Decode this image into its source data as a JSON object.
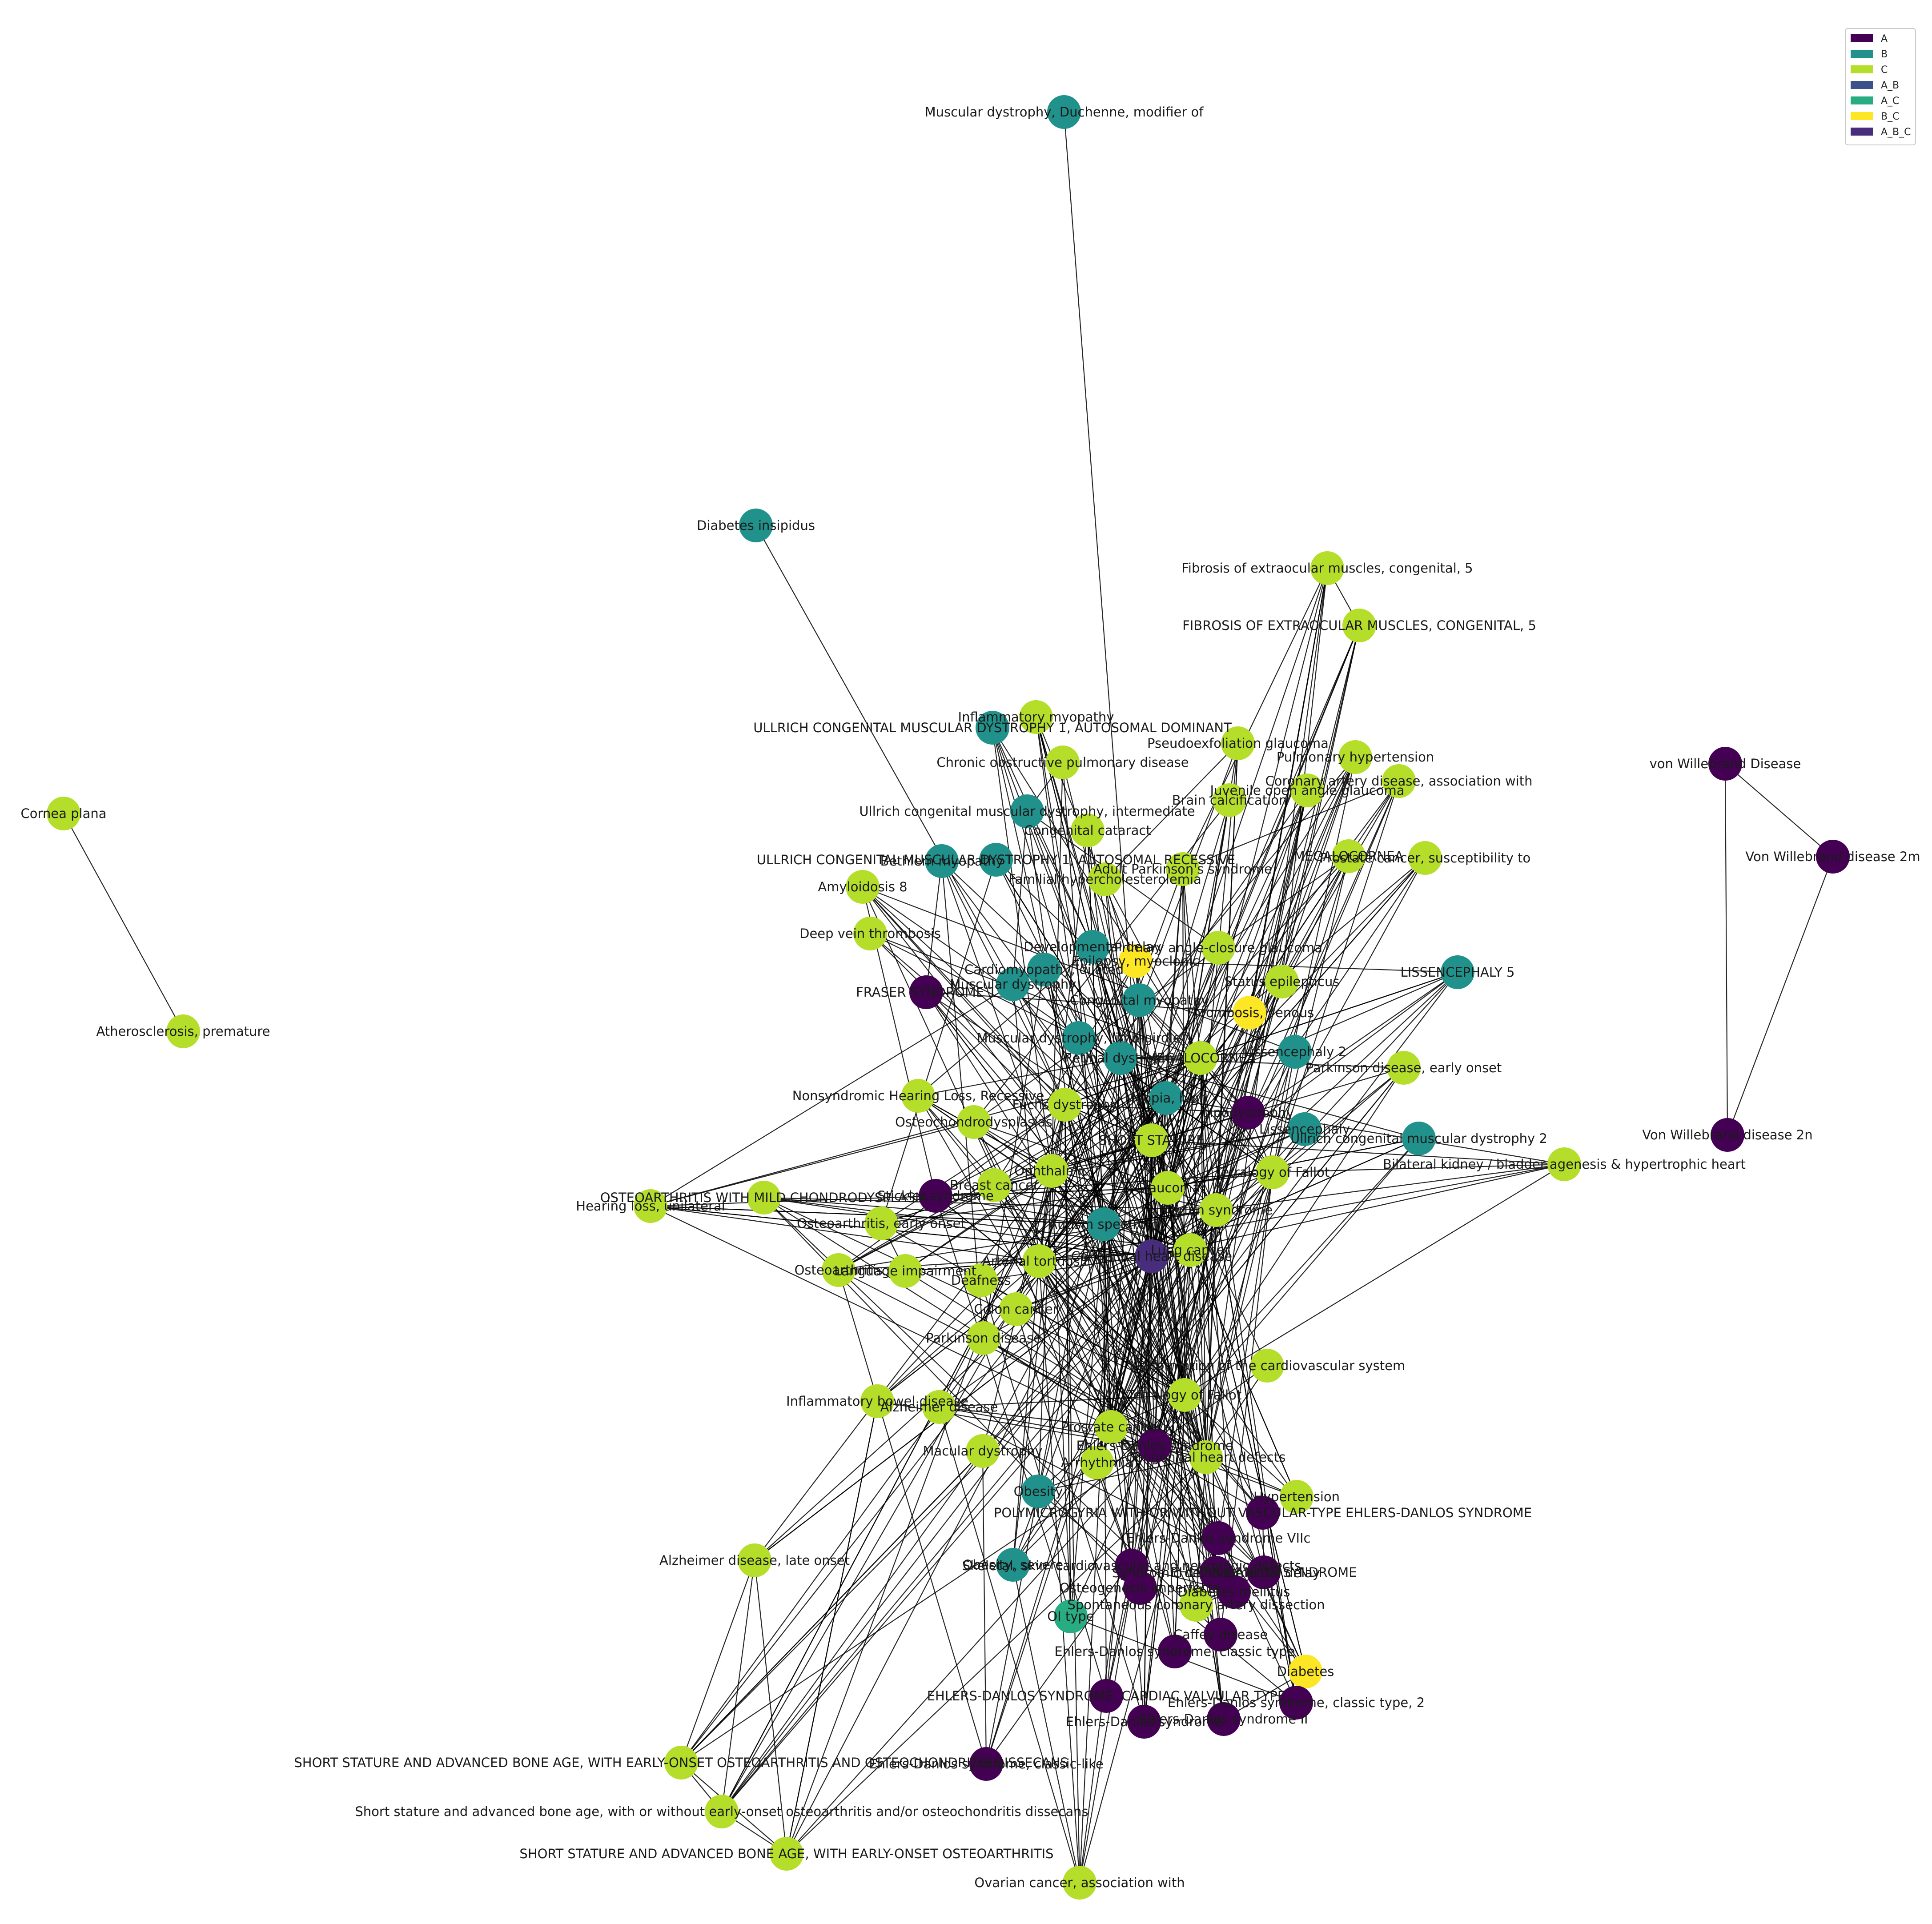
{
  "legend": {
    "items": [
      {
        "key": "A",
        "color": "#440154"
      },
      {
        "key": "B",
        "color": "#21918c"
      },
      {
        "key": "C",
        "color": "#b5de2b"
      },
      {
        "key": "A_B",
        "color": "#3b528b"
      },
      {
        "key": "A_C",
        "color": "#27ad81"
      },
      {
        "key": "B_C",
        "color": "#fde725"
      },
      {
        "key": "A_B_C",
        "color": "#472d7b"
      }
    ]
  },
  "nodes": [
    {
      "id": "n1",
      "label": "Muscular dystrophy, Duchenne, modifier of",
      "group": "B"
    },
    {
      "id": "n2",
      "label": "Diabetes insipidus",
      "group": "B"
    },
    {
      "id": "n3",
      "label": "Fibrosis of extraocular muscles, congenital, 5",
      "group": "C"
    },
    {
      "id": "n4",
      "label": "FIBROSIS OF EXTRAOCULAR MUSCLES, CONGENITAL, 5",
      "group": "C"
    },
    {
      "id": "n5",
      "label": "Inflammatory myopathy",
      "group": "C"
    },
    {
      "id": "n6",
      "label": "ULLRICH CONGENITAL MUSCULAR DYSTROPHY 1, AUTOSOMAL DOMINANT",
      "group": "B"
    },
    {
      "id": "n7",
      "label": "Chronic obstructive pulmonary disease",
      "group": "C"
    },
    {
      "id": "n8",
      "label": "Pseudoexfoliation glaucoma",
      "group": "C"
    },
    {
      "id": "n9",
      "label": "Pulmonary hypertension",
      "group": "C"
    },
    {
      "id": "n10",
      "label": "Coronary artery disease, association with",
      "group": "C"
    },
    {
      "id": "n11",
      "label": "Juvenile open angle glaucoma",
      "group": "C"
    },
    {
      "id": "n12",
      "label": "Brain calcification",
      "group": "C"
    },
    {
      "id": "n13",
      "label": "Ullrich congenital muscular dystrophy, intermediate",
      "group": "B"
    },
    {
      "id": "n14",
      "label": "Congenital cataract",
      "group": "C"
    },
    {
      "id": "n15",
      "label": "Cornea plana",
      "group": "C"
    },
    {
      "id": "n16",
      "label": "Atherosclerosis, premature",
      "group": "C"
    },
    {
      "id": "n17",
      "label": "von Willebrand Disease",
      "group": "A"
    },
    {
      "id": "n18",
      "label": "Von Willebrand disease 2m",
      "group": "A"
    },
    {
      "id": "n19",
      "label": "Von Willebrand disease 2n",
      "group": "A"
    },
    {
      "id": "n20",
      "label": "ULLRICH CONGENITAL MUSCULAR DYSTROPHY 1, AUTOSOMAL RECESSIVE",
      "group": "B"
    },
    {
      "id": "n21",
      "label": "Bethlem myopathy",
      "group": "B"
    },
    {
      "id": "n22",
      "label": "Adult Parkinson's syndrome",
      "group": "C"
    },
    {
      "id": "n23",
      "label": "Familial hypercholesterolemia",
      "group": "C"
    },
    {
      "id": "n24",
      "label": "MEGALOCORNEA",
      "group": "C"
    },
    {
      "id": "n25",
      "label": "Prostate cancer, susceptibility to",
      "group": "C"
    },
    {
      "id": "n26",
      "label": "Amyloidosis 8",
      "group": "C"
    },
    {
      "id": "n27",
      "label": "Deep vein thrombosis",
      "group": "C"
    },
    {
      "id": "n28",
      "label": "Developmental delay",
      "group": "B"
    },
    {
      "id": "n29",
      "label": "Epilepsy, myoclonic",
      "group": "B_C"
    },
    {
      "id": "n30",
      "label": "Cardiomyopathy, dilated",
      "group": "B"
    },
    {
      "id": "n31",
      "label": "Muscular dystrophy",
      "group": "B"
    },
    {
      "id": "n32",
      "label": "Primary angle-closure glaucoma",
      "group": "C"
    },
    {
      "id": "n33",
      "label": "Status epilepticus",
      "group": "C"
    },
    {
      "id": "n34",
      "label": "LISSENCEPHALY 5",
      "group": "B"
    },
    {
      "id": "n35",
      "label": "FRASER SYNDROME 1",
      "group": "A"
    },
    {
      "id": "n36",
      "label": "Thrombosis, venous",
      "group": "B_C"
    },
    {
      "id": "n37",
      "label": "Congenital myopathy",
      "group": "B"
    },
    {
      "id": "n38",
      "label": "Lissencephaly 2",
      "group": "B"
    },
    {
      "id": "n39",
      "label": "Parkinson disease, early onset",
      "group": "C"
    },
    {
      "id": "n40",
      "label": "Muscular dystrophy, limb-girdle",
      "group": "B"
    },
    {
      "id": "n41",
      "label": "Nonsyndromic Hearing Loss, Recessive",
      "group": "C"
    },
    {
      "id": "n42",
      "label": "Lipodystrophy",
      "group": "A"
    },
    {
      "id": "n43",
      "label": "Lissencephaly",
      "group": "B"
    },
    {
      "id": "n44",
      "label": "Osteochondrodysplasias",
      "group": "C"
    },
    {
      "id": "n45",
      "label": "Ullrich congenital muscular dystrophy 2",
      "group": "B"
    },
    {
      "id": "n46",
      "label": "Bilateral kidney / bladder agenesis & hypertrophic heart",
      "group": "C"
    },
    {
      "id": "n47",
      "label": "Tetralogy of Fallot",
      "group": "C"
    },
    {
      "id": "n48",
      "label": "OSTEOARTHRITIS WITH MILD CHONDRODYSPLASIA",
      "group": "C"
    },
    {
      "id": "n49",
      "label": "Hearing loss, unilateral",
      "group": "C"
    },
    {
      "id": "n50",
      "label": "Stickler syndrome",
      "group": "A"
    },
    {
      "id": "n51",
      "label": "Breast cancer",
      "group": "C"
    },
    {
      "id": "n52",
      "label": "Ophthalmic",
      "group": "C"
    },
    {
      "id": "n53",
      "label": "Glaucoma",
      "group": "C"
    },
    {
      "id": "n54",
      "label": "Osteoarthritis, early onset",
      "group": "C"
    },
    {
      "id": "n55",
      "label": "Marfan syndrome",
      "group": "C"
    },
    {
      "id": "n56",
      "label": "Autism spectrum",
      "group": "B"
    },
    {
      "id": "n57",
      "label": "Osteoarthritis",
      "group": "C"
    },
    {
      "id": "n58",
      "label": "Language impairment",
      "group": "C"
    },
    {
      "id": "n59",
      "label": "Deafness",
      "group": "C"
    },
    {
      "id": "n60",
      "label": "Arterial tortuosity",
      "group": "C"
    },
    {
      "id": "n61",
      "label": "Congenital heart disease",
      "group": "A_B_C"
    },
    {
      "id": "n62",
      "label": "Lung cancer",
      "group": "C"
    },
    {
      "id": "n63",
      "label": "Colon cancer",
      "group": "C"
    },
    {
      "id": "n64",
      "label": "Parkinson disease",
      "group": "C"
    },
    {
      "id": "n65",
      "label": "Malformation of the cardiovascular system",
      "group": "C"
    },
    {
      "id": "n66",
      "label": "Alzheimer disease",
      "group": "C"
    },
    {
      "id": "n67",
      "label": "Inflammatory bowel disease",
      "group": "C"
    },
    {
      "id": "n68",
      "label": "Tetralogy of Fallot",
      "group": "C"
    },
    {
      "id": "n69",
      "label": "Macular dystrophy",
      "group": "C"
    },
    {
      "id": "n70",
      "label": "Prostate cancer",
      "group": "C"
    },
    {
      "id": "n71",
      "label": "Ehlers-Danlos syndrome",
      "group": "A"
    },
    {
      "id": "n72",
      "label": "Arrhythmia",
      "group": "C"
    },
    {
      "id": "n73",
      "label": "Congenital heart defects",
      "group": "C"
    },
    {
      "id": "n74",
      "label": "Obesity",
      "group": "B"
    },
    {
      "id": "n75",
      "label": "Hypertension",
      "group": "C"
    },
    {
      "id": "n76",
      "label": "POLYMICROGYRIA WITH OR WITHOUT VASCULAR-TYPE EHLERS-DANLOS SYNDROME",
      "group": "A"
    },
    {
      "id": "n77",
      "label": "Ehlers-Danlos syndrome VIIc",
      "group": "A"
    },
    {
      "id": "n78",
      "label": "Obesity, severe",
      "group": "B"
    },
    {
      "id": "n79",
      "label": "Skeletal, skin, cardiovascular and neurologic defects",
      "group": "A"
    },
    {
      "id": "n80",
      "label": "EHLERS-DANLOS SYNDROME",
      "group": "A"
    },
    {
      "id": "n81",
      "label": "Syndromic developmental delay",
      "group": "A"
    },
    {
      "id": "n82",
      "label": "Osteogenesis imperfecta",
      "group": "A"
    },
    {
      "id": "n83",
      "label": "Diabetes mellitus",
      "group": "A"
    },
    {
      "id": "n84",
      "label": "Spontaneous coronary artery dissection",
      "group": "C"
    },
    {
      "id": "n85",
      "label": "OI type",
      "group": "A_C"
    },
    {
      "id": "n86",
      "label": "Caffey disease",
      "group": "A"
    },
    {
      "id": "n87",
      "label": "Ehlers-Danlos syndrome, classic type",
      "group": "A"
    },
    {
      "id": "n88",
      "label": "Diabetes",
      "group": "B_C"
    },
    {
      "id": "n89",
      "label": "EHLERS-DANLOS SYNDROME, CARDIAC VALVULAR TYPE",
      "group": "A"
    },
    {
      "id": "n90",
      "label": "Ehlers-Danlos syndrome, classic type, 2",
      "group": "A"
    },
    {
      "id": "n91",
      "label": "Ehlers-Danlos syndrome",
      "group": "A"
    },
    {
      "id": "n92",
      "label": "Ehlers-Danlos syndrome II",
      "group": "A"
    },
    {
      "id": "n93",
      "label": "Alzheimer disease, late onset",
      "group": "C"
    },
    {
      "id": "n94",
      "label": "SHORT STATURE AND ADVANCED BONE AGE, WITH EARLY-ONSET OSTEOARTHRITIS AND OSTEOCHONDRITIS DISSECANS",
      "group": "C"
    },
    {
      "id": "n95",
      "label": "Ehlers-Danlos syndrome, classic-like",
      "group": "A"
    },
    {
      "id": "n96",
      "label": "Short stature and advanced bone age, with or without early-onset osteoarthritis and/or osteochondritis dissecans",
      "group": "C"
    },
    {
      "id": "n97",
      "label": "SHORT STATURE AND ADVANCED BONE AGE, WITH EARLY-ONSET OSTEOARTHRITIS",
      "group": "C"
    },
    {
      "id": "n98",
      "label": "Ovarian cancer, association with",
      "group": "C"
    },
    {
      "id": "n99",
      "label": "Myopia, high",
      "group": "B"
    },
    {
      "id": "n100",
      "label": "Retinal dystrophy",
      "group": "B"
    },
    {
      "id": "n101",
      "label": "MEGALOCORNEA",
      "group": "C"
    },
    {
      "id": "n102",
      "label": "Fuchs dystrophy",
      "group": "C"
    },
    {
      "id": "n103",
      "label": "SHORT STATURE",
      "group": "C"
    }
  ]
}
